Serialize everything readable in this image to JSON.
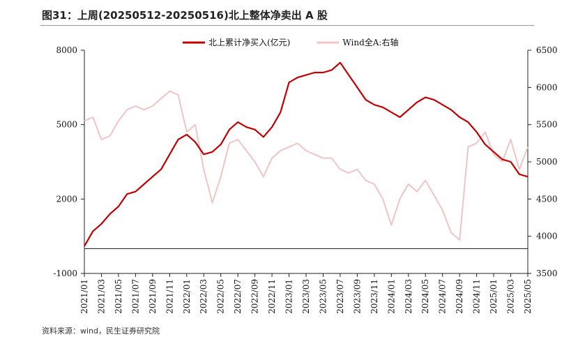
{
  "figure": {
    "title": "图31：上周(20250512-20250516)北上整体净卖出 A 股",
    "source": "资料来源：wind，民生证券研究院"
  },
  "chart_data": {
    "type": "line",
    "x_ticks": [
      "2021/01",
      "2021/03",
      "2021/05",
      "2021/07",
      "2021/09",
      "2021/11",
      "2022/01",
      "2022/03",
      "2022/05",
      "2022/07",
      "2022/09",
      "2022/11",
      "2023/01",
      "2023/03",
      "2023/05",
      "2023/07",
      "2023/09",
      "2023/11",
      "2024/01",
      "2024/03",
      "2024/05",
      "2024/07",
      "2024/09",
      "2024/11",
      "2025/01",
      "2025/03",
      "2025/05"
    ],
    "y_left": {
      "range": [
        -1000,
        8000
      ],
      "ticks": [
        -1000,
        2000,
        5000,
        8000
      ]
    },
    "y_right": {
      "range": [
        3500,
        6500
      ],
      "ticks": [
        3500,
        4000,
        4500,
        5000,
        5500,
        6000,
        6500
      ]
    },
    "grid": false,
    "legend_position": "top",
    "series": [
      {
        "name": "北上累计净买入(亿元)",
        "axis": "left",
        "color": "#c00000",
        "x": [
          "2021/01",
          "2021/02",
          "2021/03",
          "2021/04",
          "2021/05",
          "2021/06",
          "2021/07",
          "2021/08",
          "2021/09",
          "2021/10",
          "2021/11",
          "2021/12",
          "2022/01",
          "2022/02",
          "2022/03",
          "2022/04",
          "2022/05",
          "2022/06",
          "2022/07",
          "2022/08",
          "2022/09",
          "2022/10",
          "2022/11",
          "2022/12",
          "2023/01",
          "2023/02",
          "2023/03",
          "2023/04",
          "2023/05",
          "2023/06",
          "2023/07",
          "2023/08",
          "2023/09",
          "2023/10",
          "2023/11",
          "2023/12",
          "2024/01",
          "2024/02",
          "2024/03",
          "2024/04",
          "2024/05",
          "2024/06",
          "2024/07",
          "2024/08",
          "2024/09",
          "2024/10",
          "2024/11",
          "2024/12",
          "2025/01",
          "2025/02",
          "2025/03",
          "2025/04",
          "2025/05"
        ],
        "values": [
          100,
          700,
          1000,
          1400,
          1700,
          2200,
          2300,
          2600,
          2900,
          3200,
          3800,
          4400,
          4600,
          4300,
          3800,
          3900,
          4200,
          4800,
          5100,
          4900,
          4800,
          4500,
          4900,
          5500,
          6700,
          6900,
          7000,
          7100,
          7100,
          7200,
          7500,
          7000,
          6500,
          6000,
          5800,
          5700,
          5500,
          5300,
          5600,
          5900,
          6100,
          6000,
          5800,
          5600,
          5300,
          5100,
          4700,
          4200,
          3900,
          3600,
          3500,
          3000,
          2900
        ]
      },
      {
        "name": "Wind全A:右轴",
        "axis": "right",
        "color": "#f0c4c4",
        "x": [
          "2021/01",
          "2021/02",
          "2021/03",
          "2021/04",
          "2021/05",
          "2021/06",
          "2021/07",
          "2021/08",
          "2021/09",
          "2021/10",
          "2021/11",
          "2021/12",
          "2022/01",
          "2022/02",
          "2022/03",
          "2022/04",
          "2022/05",
          "2022/06",
          "2022/07",
          "2022/08",
          "2022/09",
          "2022/10",
          "2022/11",
          "2022/12",
          "2023/01",
          "2023/02",
          "2023/03",
          "2023/04",
          "2023/05",
          "2023/06",
          "2023/07",
          "2023/08",
          "2023/09",
          "2023/10",
          "2023/11",
          "2023/12",
          "2024/01",
          "2024/02",
          "2024/03",
          "2024/04",
          "2024/05",
          "2024/06",
          "2024/07",
          "2024/08",
          "2024/09",
          "2024/10",
          "2024/11",
          "2024/12",
          "2025/01",
          "2025/02",
          "2025/03",
          "2025/04",
          "2025/05"
        ],
        "values": [
          5550,
          5600,
          5300,
          5350,
          5550,
          5700,
          5750,
          5700,
          5750,
          5850,
          5950,
          5900,
          5400,
          5500,
          4900,
          4450,
          4800,
          5250,
          5300,
          5150,
          5000,
          4800,
          5050,
          5150,
          5200,
          5250,
          5150,
          5100,
          5050,
          5050,
          4900,
          4850,
          4900,
          4750,
          4700,
          4500,
          4150,
          4500,
          4700,
          4600,
          4750,
          4550,
          4350,
          4050,
          3950,
          5200,
          5250,
          5400,
          5100,
          5000,
          5300,
          4900,
          5200
        ]
      }
    ]
  }
}
